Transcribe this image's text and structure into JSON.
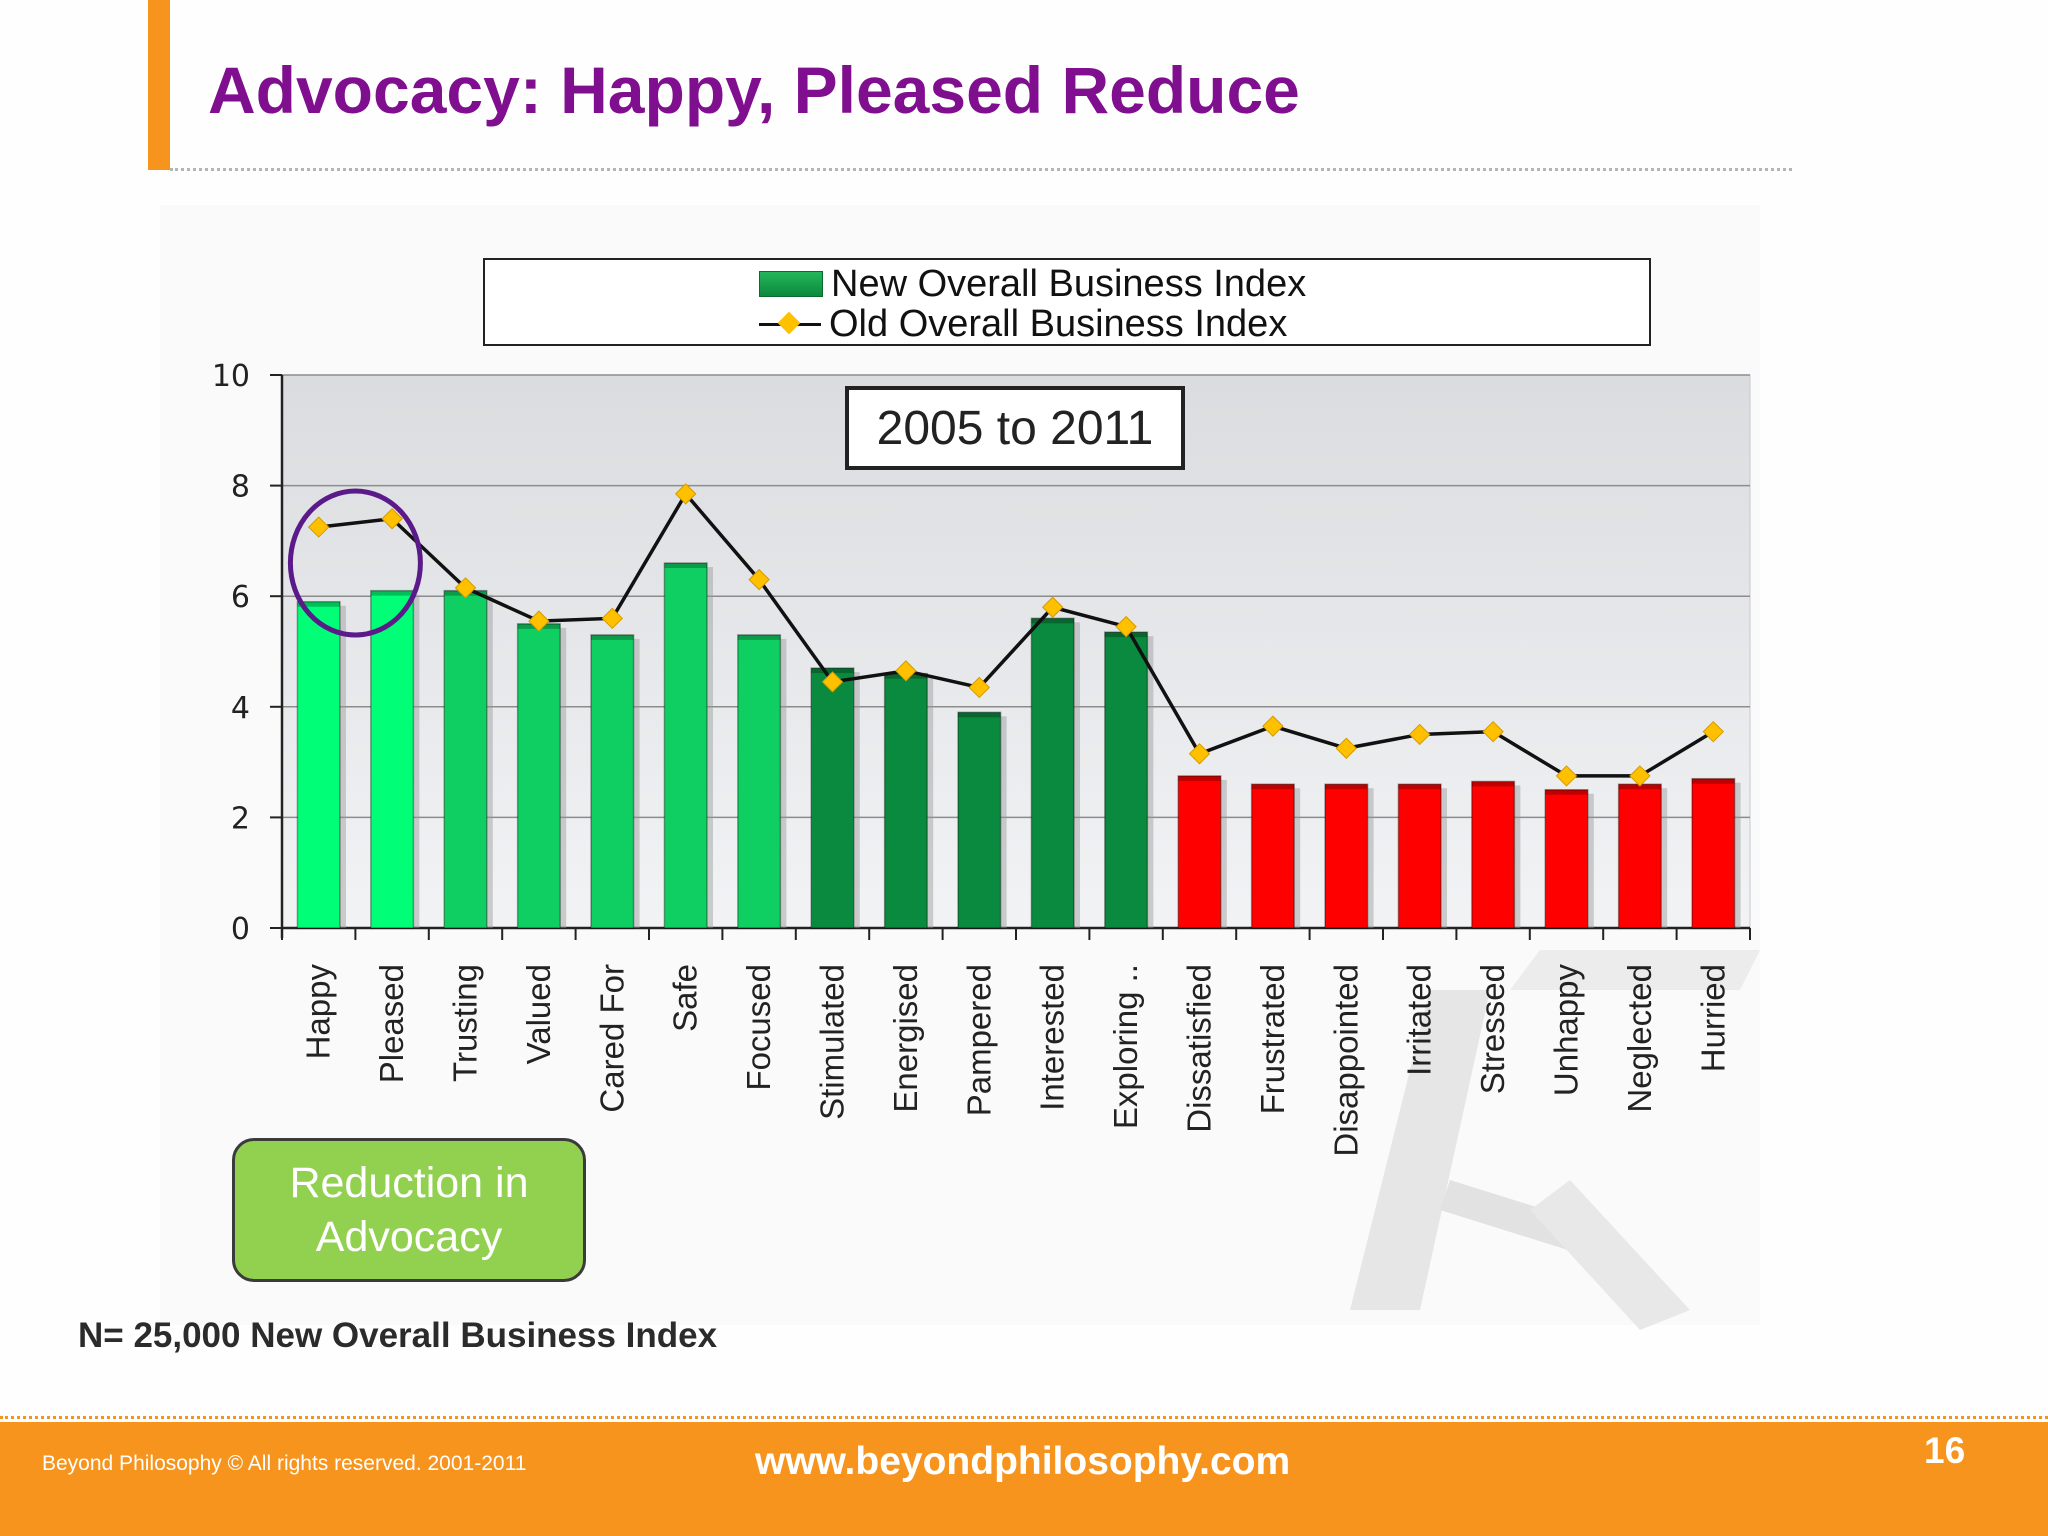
{
  "slide": {
    "title": "Advocacy:  Happy, Pleased Reduce",
    "sample_note": "N= 25,000 New Overall Business Index",
    "callout": "Reduction in Advocacy",
    "period_box": "2005 to 2011"
  },
  "footer": {
    "copyright": "Beyond Philosophy © All rights reserved. 2001-2011",
    "url": "www.beyondphilosophy.com",
    "page_number": "16"
  },
  "colors": {
    "title": "#800f8f",
    "accent": "#f7941d",
    "bar_light_green": "#00ff77",
    "bar_mid_green": "#0fcf62",
    "bar_dark_green": "#0a8a3e",
    "bar_red": "#ff0000",
    "line": "#111111",
    "marker": "#ffc000",
    "highlight_circle": "#5b1a8a"
  },
  "chart_data": {
    "type": "bar",
    "categories": [
      "Happy",
      "Pleased",
      "Trusting",
      "Valued",
      "Cared For",
      "Safe",
      "Focused",
      "Stimulated",
      "Energised",
      "Pampered",
      "Interested",
      "Exploring ..",
      "Dissatisfied",
      "Frustrated",
      "Disappointed",
      "Irritated",
      "Stressed",
      "Unhappy",
      "Neglected",
      "Hurried"
    ],
    "series": [
      {
        "name": "New Overall Business Index",
        "kind": "bar",
        "values": [
          5.9,
          6.1,
          6.1,
          5.5,
          5.3,
          6.6,
          5.3,
          4.7,
          4.6,
          3.9,
          5.6,
          5.35,
          2.75,
          2.6,
          2.6,
          2.6,
          2.65,
          2.5,
          2.6,
          2.7
        ]
      },
      {
        "name": "Old Overall Business Index",
        "kind": "line",
        "values": [
          7.25,
          7.4,
          6.15,
          5.55,
          5.6,
          7.85,
          6.3,
          4.45,
          4.65,
          4.35,
          5.8,
          5.45,
          3.15,
          3.65,
          3.25,
          3.5,
          3.55,
          2.75,
          2.75,
          3.55
        ]
      }
    ],
    "bar_color_groups": [
      "light",
      "light",
      "mid",
      "mid",
      "mid",
      "mid",
      "mid",
      "dark",
      "dark",
      "dark",
      "dark",
      "dark",
      "red",
      "red",
      "red",
      "red",
      "red",
      "red",
      "red",
      "red"
    ],
    "ylim": [
      0,
      10
    ],
    "yticks": [
      "0",
      "2",
      "4",
      "6",
      "8",
      "10"
    ],
    "grid": true,
    "legend_position": "top",
    "highlighted_categories": [
      "Happy",
      "Pleased"
    ]
  }
}
